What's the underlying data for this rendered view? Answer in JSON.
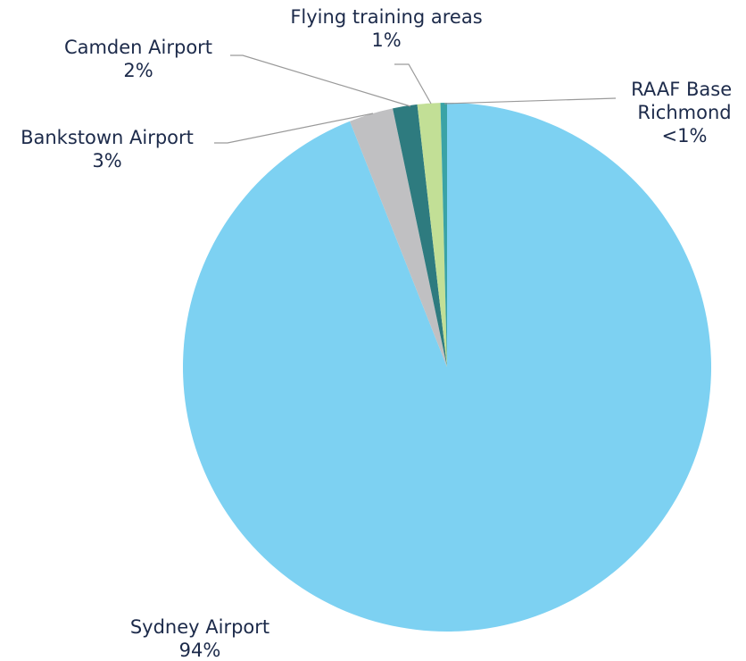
{
  "chart_data": {
    "type": "pie",
    "title": "",
    "slices": [
      {
        "label": "Sydney Airport",
        "pct_label": "94%",
        "value": 94.0,
        "color": "#7dd1f2"
      },
      {
        "label": "Bankstown Airport",
        "pct_label": "3%",
        "value": 2.7,
        "color": "#c0c0c2"
      },
      {
        "label": "Camden Airport",
        "pct_label": "2%",
        "value": 1.5,
        "color": "#2e7b7f"
      },
      {
        "label": "Flying training areas",
        "pct_label": "1%",
        "value": 1.4,
        "color": "#c2df96"
      },
      {
        "label": "RAAF Base Richmond",
        "pct_label": "<1%",
        "value": 0.4,
        "color": "#3aa3a6"
      }
    ]
  }
}
